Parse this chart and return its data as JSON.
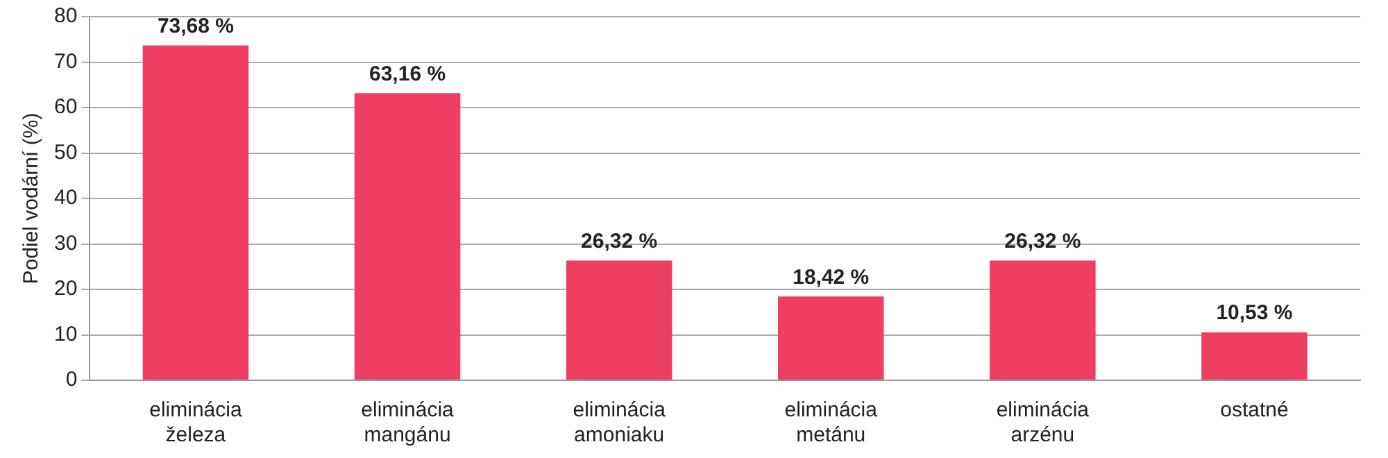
{
  "chart_data": {
    "type": "bar",
    "ylabel": "Podiel vodární (%)",
    "categories": [
      "eliminácia železa",
      "eliminácia mangánu",
      "eliminácia amoniaku",
      "eliminácia metánu",
      "eliminácia arzénu",
      "ostatné"
    ],
    "values": [
      73.68,
      63.16,
      26.32,
      18.42,
      26.32,
      10.53
    ],
    "value_labels": [
      "73,68 %",
      "63,16 %",
      "26,32 %",
      "18,42 %",
      "26,32 %",
      "10,53 %"
    ],
    "color": "#ee3f62",
    "ylim": [
      0,
      80
    ],
    "yticks": [
      0,
      10,
      20,
      30,
      40,
      50,
      60,
      70,
      80
    ],
    "grid": "y",
    "legend": false
  }
}
